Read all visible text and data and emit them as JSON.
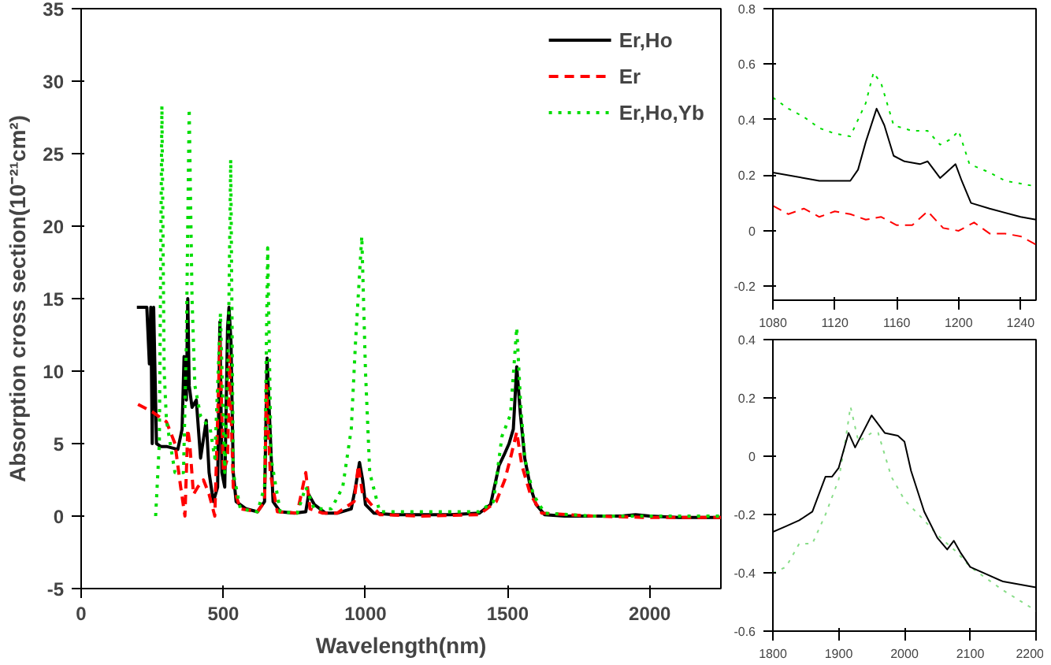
{
  "chart_data": [
    {
      "type": "line",
      "xlabel": "Wavelength(nm)",
      "ylabel": "Absorption cross section(10⁻²¹cm²)",
      "xlim": [
        0,
        2250
      ],
      "ylim": [
        -5,
        35
      ],
      "xticks": [
        0,
        500,
        1000,
        1500,
        2000
      ],
      "yticks": [
        -5,
        0,
        5,
        10,
        15,
        20,
        25,
        30,
        35
      ],
      "grid": false,
      "legend": "top right",
      "series": [
        {
          "name": "Er,Ho",
          "color": "#000000",
          "line_style": "solid",
          "x": [
            196,
            231,
            240,
            245,
            250,
            255,
            265,
            280,
            300,
            340,
            355,
            362,
            370,
            375,
            380,
            390,
            405,
            420,
            440,
            450,
            465,
            480,
            488,
            495,
            505,
            515,
            520,
            527,
            535,
            545,
            580,
            620,
            645,
            654,
            660,
            675,
            700,
            750,
            790,
            800,
            820,
            860,
            900,
            950,
            965,
            979,
            990,
            1000,
            1030,
            1100,
            1200,
            1300,
            1400,
            1440,
            1470,
            1487,
            1505,
            1520,
            1532,
            1545,
            1560,
            1580,
            1600,
            1630,
            1700,
            1800,
            1900,
            1950,
            2000,
            2100,
            2250
          ],
          "values": [
            14.4,
            14.4,
            10.5,
            14.4,
            5,
            14.4,
            5,
            4.8,
            4.8,
            4.6,
            6,
            11,
            8,
            15,
            9,
            7.5,
            8,
            4,
            6.6,
            3,
            1,
            2,
            13.4,
            3,
            2,
            13,
            14.4,
            12,
            3,
            1,
            0.5,
            0.3,
            1,
            10.9,
            8,
            1,
            0.3,
            0.2,
            0.3,
            1.5,
            0.8,
            0.2,
            0.2,
            0.5,
            2,
            3.7,
            2.5,
            0.8,
            0.2,
            0.1,
            0.1,
            0.1,
            0.2,
            0.8,
            3.5,
            4.2,
            5,
            6,
            10.3,
            7,
            4,
            2,
            0.8,
            0.1,
            0,
            0,
            0,
            0.1,
            0,
            -0.1,
            -0.1
          ]
        },
        {
          "name": "Er",
          "color": "#ff0000",
          "line_style": "dashed",
          "x": [
            200,
            250,
            300,
            330,
            350,
            365,
            375,
            382,
            395,
            410,
            430,
            450,
            470,
            488,
            500,
            515,
            522,
            535,
            560,
            620,
            645,
            652,
            665,
            690,
            760,
            790,
            805,
            850,
            900,
            960,
            975,
            990,
            1050,
            1200,
            1400,
            1460,
            1490,
            1510,
            1532,
            1550,
            1580,
            1620,
            1800,
            2000,
            2250
          ],
          "values": [
            7.7,
            7.2,
            6.5,
            5,
            2,
            0,
            6,
            5,
            1.5,
            2,
            2.5,
            1.5,
            0,
            12,
            3,
            4,
            11,
            2,
            0.5,
            0.3,
            1,
            9,
            3,
            0.3,
            0.2,
            3,
            0.5,
            0.2,
            0.2,
            1,
            3.5,
            1.5,
            0.1,
            0,
            0.1,
            1,
            2.5,
            4,
            5.8,
            3.5,
            1.5,
            0.2,
            0,
            -0.1,
            -0.1
          ]
        },
        {
          "name": "Er,Ho,Yb",
          "color": "#00dd00",
          "line_style": "dotted",
          "x": [
            262,
            275,
            284,
            292,
            300,
            330,
            360,
            370,
            380,
            390,
            400,
            420,
            454,
            470,
            490,
            505,
            518,
            526,
            535,
            560,
            620,
            645,
            656,
            668,
            700,
            760,
            790,
            820,
            880,
            920,
            950,
            965,
            987,
            1000,
            1015,
            1050,
            1200,
            1400,
            1450,
            1480,
            1510,
            1532,
            1545,
            1560,
            1590,
            1630,
            1800,
            2000,
            2250
          ],
          "values": [
            0,
            5,
            28.3,
            10,
            6.6,
            3,
            3,
            12,
            28.1,
            15,
            9,
            6.9,
            6,
            4,
            14,
            3,
            12,
            24.6,
            3,
            0.5,
            0.3,
            2,
            18.5,
            4,
            0.3,
            0.2,
            2,
            0.5,
            0.5,
            2,
            6,
            12,
            19.3,
            10,
            3,
            0.3,
            0.3,
            0.3,
            1,
            5.5,
            7,
            13,
            8,
            4,
            1.5,
            0.2,
            0,
            0,
            0
          ]
        }
      ]
    },
    {
      "type": "line",
      "xlim": [
        1080,
        1250
      ],
      "ylim": [
        -0.25,
        0.8
      ],
      "xticks": [
        1080,
        1120,
        1160,
        1200,
        1240
      ],
      "yticks": [
        -0.2,
        0.0,
        0.2,
        0.4,
        0.6,
        0.8
      ],
      "grid": false,
      "legend": false,
      "series": [
        {
          "color": "#00dd00",
          "line_style": "dotted",
          "x": [
            1080,
            1090,
            1100,
            1110,
            1120,
            1130,
            1140,
            1145,
            1150,
            1158,
            1170,
            1180,
            1188,
            1195,
            1200,
            1207,
            1220,
            1230,
            1250
          ],
          "values": [
            0.48,
            0.44,
            0.41,
            0.37,
            0.35,
            0.34,
            0.46,
            0.57,
            0.53,
            0.38,
            0.36,
            0.36,
            0.31,
            0.33,
            0.36,
            0.24,
            0.21,
            0.18,
            0.16
          ]
        },
        {
          "color": "#000000",
          "line_style": "solid",
          "x": [
            1080,
            1100,
            1110,
            1130,
            1135,
            1140,
            1147,
            1152,
            1158,
            1165,
            1175,
            1180,
            1188,
            1192,
            1198,
            1202,
            1208,
            1220,
            1240,
            1250
          ],
          "values": [
            0.21,
            0.19,
            0.18,
            0.18,
            0.22,
            0.32,
            0.44,
            0.38,
            0.27,
            0.25,
            0.24,
            0.25,
            0.19,
            0.21,
            0.24,
            0.18,
            0.1,
            0.08,
            0.05,
            0.04
          ]
        },
        {
          "color": "#ff0000",
          "line_style": "dashed",
          "x": [
            1080,
            1090,
            1100,
            1110,
            1120,
            1130,
            1140,
            1150,
            1160,
            1170,
            1180,
            1190,
            1200,
            1210,
            1220,
            1230,
            1240,
            1250
          ],
          "values": [
            0.09,
            0.06,
            0.08,
            0.05,
            0.07,
            0.06,
            0.04,
            0.05,
            0.02,
            0.02,
            0.07,
            0.01,
            0.0,
            0.03,
            -0.01,
            -0.01,
            -0.02,
            -0.05
          ]
        }
      ]
    },
    {
      "type": "line",
      "xlim": [
        1800,
        2200
      ],
      "ylim": [
        -0.6,
        0.4
      ],
      "xticks": [
        1800,
        1900,
        2000,
        2100,
        2200
      ],
      "yticks": [
        -0.6,
        -0.4,
        -0.2,
        0.0,
        0.2,
        0.4
      ],
      "grid": false,
      "legend": false,
      "series": [
        {
          "color": "#88dd88",
          "line_style": "dotted",
          "x": [
            1800,
            1820,
            1840,
            1860,
            1880,
            1900,
            1910,
            1918,
            1930,
            1950,
            1960,
            1980,
            2000,
            2030,
            2050,
            2080,
            2100,
            2150,
            2200
          ],
          "values": [
            -0.4,
            -0.38,
            -0.3,
            -0.3,
            -0.2,
            -0.08,
            0.05,
            0.17,
            0.05,
            0.08,
            0.08,
            -0.07,
            -0.15,
            -0.22,
            -0.27,
            -0.33,
            -0.38,
            -0.46,
            -0.53
          ]
        },
        {
          "color": "#000000",
          "line_style": "solid",
          "x": [
            1800,
            1820,
            1840,
            1860,
            1880,
            1890,
            1900,
            1915,
            1925,
            1950,
            1970,
            1990,
            2000,
            2010,
            2030,
            2050,
            2065,
            2075,
            2085,
            2100,
            2150,
            2200
          ],
          "values": [
            -0.26,
            -0.24,
            -0.22,
            -0.19,
            -0.07,
            -0.07,
            -0.04,
            0.08,
            0.03,
            0.14,
            0.08,
            0.07,
            0.05,
            -0.05,
            -0.19,
            -0.28,
            -0.32,
            -0.29,
            -0.33,
            -0.38,
            -0.43,
            -0.45
          ]
        }
      ]
    }
  ]
}
